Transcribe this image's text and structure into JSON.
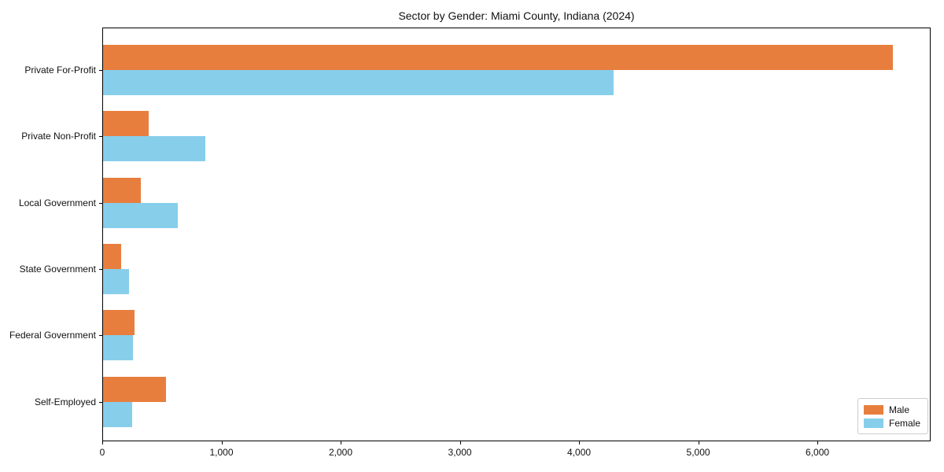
{
  "title": "Sector by Gender: Miami County, Indiana (2024)",
  "colors": {
    "male": "#E87E3E",
    "female": "#87CEEB",
    "axis": "#000000",
    "legend_border": "#cccccc",
    "background": "#ffffff"
  },
  "legend": {
    "position": "lower right",
    "items": [
      {
        "label": "Male",
        "color": "#E87E3E"
      },
      {
        "label": "Female",
        "color": "#87CEEB"
      }
    ]
  },
  "chart_data": {
    "type": "bar",
    "orientation": "horizontal",
    "title": "Sector by Gender: Miami County, Indiana (2024)",
    "categories": [
      "Private For-Profit",
      "Private Non-Profit",
      "Local Government",
      "State Government",
      "Federal Government",
      "Self-Employed"
    ],
    "series": [
      {
        "name": "Male",
        "color": "#E87E3E",
        "values": [
          6627,
          382,
          316,
          152,
          264,
          528
        ]
      },
      {
        "name": "Female",
        "color": "#87CEEB",
        "values": [
          4286,
          857,
          626,
          218,
          250,
          244
        ]
      }
    ],
    "xlabel": "",
    "ylabel": "",
    "xlim": [
      0,
      6950
    ],
    "xticks": [
      0,
      1000,
      2000,
      3000,
      4000,
      5000,
      6000
    ],
    "xtick_labels": [
      "0",
      "1,000",
      "2,000",
      "3,000",
      "4,000",
      "5,000",
      "6,000"
    ],
    "grid": false,
    "legend_position": "lower right"
  }
}
